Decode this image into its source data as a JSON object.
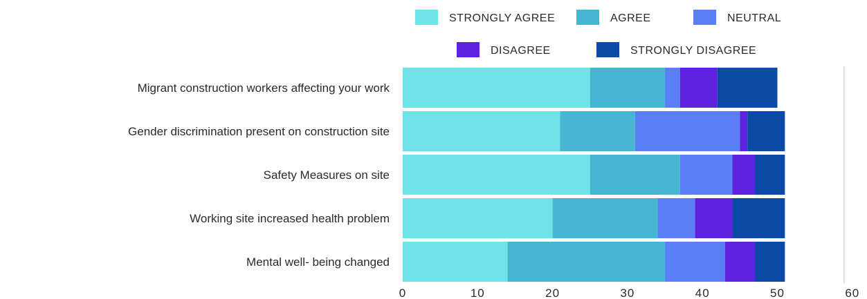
{
  "chart_data": {
    "type": "bar",
    "orientation": "horizontal",
    "stacked": true,
    "title": "",
    "xlabel": "",
    "ylabel": "",
    "xlim": [
      0,
      60
    ],
    "xticks": [
      "0",
      "10",
      "20",
      "30",
      "40",
      "50",
      "60"
    ],
    "grid": "none",
    "legend_position": "top-right",
    "categories": [
      "Migrant construction workers affecting your work",
      "Gender discrimination present on construction site",
      "Safety Measures on site",
      "Working site increased health problem",
      "Mental well- being changed"
    ],
    "series": [
      {
        "name": "STRONGLY AGREE",
        "color": "#6ee3e8",
        "values": [
          25,
          21,
          25,
          20,
          14
        ]
      },
      {
        "name": "AGREE",
        "color": "#45b6d2",
        "values": [
          10,
          10,
          12,
          14,
          21
        ]
      },
      {
        "name": "NEUTRAL",
        "color": "#5a7ef5",
        "values": [
          2,
          14,
          7,
          5,
          8
        ]
      },
      {
        "name": "DISAGREE",
        "color": "#5e22de",
        "values": [
          5,
          1,
          3,
          5,
          4
        ]
      },
      {
        "name": "STRONGLY DISAGREE",
        "color": "#0c4aa8",
        "values": [
          8,
          5,
          4,
          7,
          4
        ]
      }
    ]
  }
}
